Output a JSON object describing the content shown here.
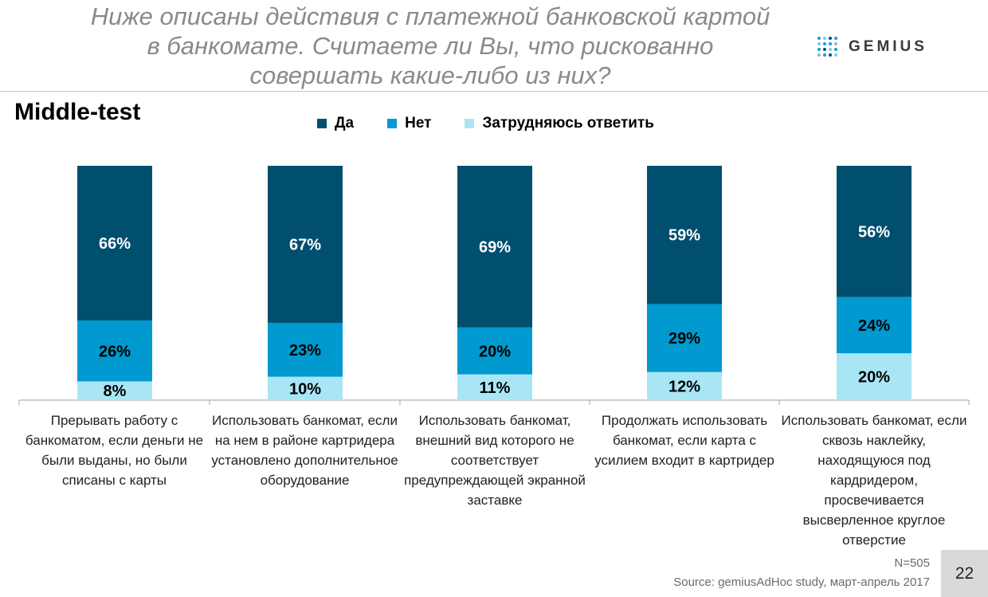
{
  "header": {
    "title_lines": [
      "Ниже описаны действия с платежной банковской картой",
      "в банкомате. Считаете ли Вы, что рискованно",
      "совершать какие-либо из них?"
    ],
    "logo_text": "GEMIUS"
  },
  "subtitle": "Middle-test",
  "footer": {
    "n": "N=505",
    "source": "Source: gemiusAdHoc study, март-апрель 2017",
    "page_number": "22"
  },
  "colors": {
    "yes": "#004f6e",
    "no": "#0099d0",
    "unsure": "#a8e6f5",
    "logo_dots": [
      "#00a3e0",
      "#7fc8e8",
      "#004f6e",
      "#b0b0b0"
    ]
  },
  "chart_data": {
    "type": "bar",
    "stacked": true,
    "percent_stacked": true,
    "legend_position": "top",
    "ylim": [
      0,
      100
    ],
    "categories": [
      "Прерывать работу с банкоматом, если деньги не были выданы, но были списаны с карты",
      "Использовать банкомат, если на нем в районе картридера установлено дополнительное оборудование",
      "Использовать банкомат, внешний вид которого не соответствует предупреждающей экранной заставке",
      "Продолжать использовать банкомат, если карта с усилием входит в картридер",
      "Использовать банкомат, если сквозь наклейку, находящуюся под кардридером, просвечивается высверленное круглое отверстие"
    ],
    "series": [
      {
        "name": "Затрудняюсь ответить",
        "values": [
          8,
          10,
          11,
          12,
          20
        ],
        "color": "#a8e6f5"
      },
      {
        "name": "Нет",
        "values": [
          26,
          23,
          20,
          29,
          24
        ],
        "color": "#0099d0"
      },
      {
        "name": "Да",
        "values": [
          66,
          67,
          69,
          59,
          56
        ],
        "color": "#004f6e"
      }
    ],
    "legend_order": [
      "Да",
      "Нет",
      "Затрудняюсь ответить"
    ]
  }
}
